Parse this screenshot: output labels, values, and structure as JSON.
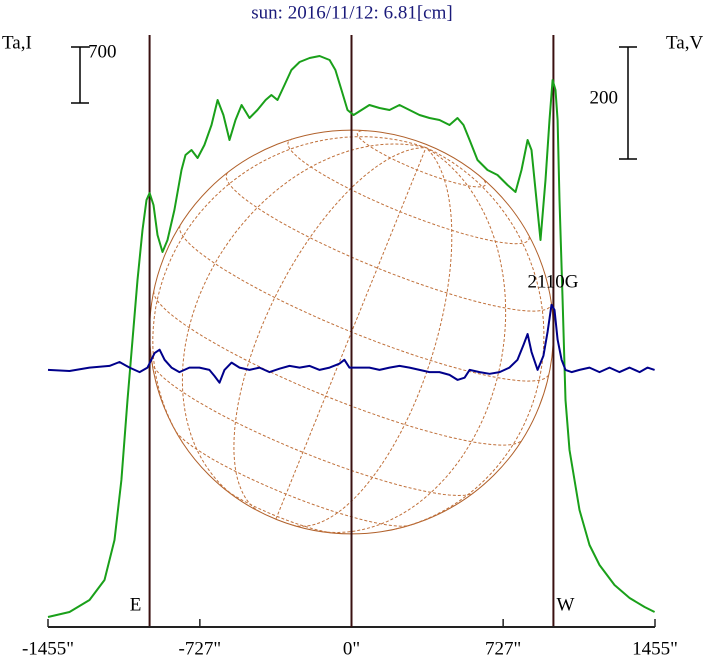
{
  "chart_data": {
    "type": "line",
    "title": "sun: 2016/11/12: 6.81[cm]",
    "xlim": [
      -1455,
      1455
    ],
    "xticks": [
      {
        "value": -1455,
        "label": "-1455\""
      },
      {
        "value": -727,
        "label": "-727\""
      },
      {
        "value": 0,
        "label": "0\""
      },
      {
        "value": 727,
        "label": "727\""
      },
      {
        "value": 1455,
        "label": "1455\""
      }
    ],
    "ylim": [
      0,
      7500
    ],
    "y2lim": [
      -459,
      612
    ],
    "limb_x": [
      -968,
      968
    ],
    "limb_labels": [
      "E",
      "W"
    ],
    "scale_bars": [
      {
        "value": 700,
        "axis": "y"
      },
      {
        "value": 200,
        "axis": "y2"
      }
    ],
    "annotation": "2110G",
    "series": [
      {
        "name": "Ta,I",
        "color": "#1aa01a",
        "x": [
          -1455,
          -1352,
          -1256,
          -1184,
          -1136,
          -1103,
          -1074,
          -1050,
          -1026,
          -1002,
          -983,
          -968,
          -949,
          -930,
          -906,
          -882,
          -849,
          -815,
          -796,
          -767,
          -738,
          -705,
          -671,
          -642,
          -614,
          -585,
          -556,
          -527,
          -489,
          -451,
          -412,
          -384,
          -355,
          -321,
          -288,
          -249,
          -201,
          -153,
          -105,
          -77,
          -48,
          -19,
          10,
          48,
          86,
          134,
          182,
          230,
          278,
          326,
          374,
          422,
          470,
          508,
          537,
          566,
          604,
          652,
          700,
          748,
          786,
          815,
          844,
          863,
          882,
          906,
          930,
          949,
          964,
          978,
          988,
          997,
          1012,
          1026,
          1045,
          1069,
          1093,
          1141,
          1189,
          1261,
          1333,
          1405,
          1453
        ],
        "values": [
          125,
          188,
          338,
          588,
          1088,
          1838,
          2838,
          3588,
          4338,
          4963,
          5338,
          5425,
          5275,
          4900,
          4688,
          4838,
          5213,
          5713,
          5900,
          5963,
          5863,
          6025,
          6275,
          6588,
          6400,
          6088,
          6338,
          6525,
          6363,
          6463,
          6588,
          6650,
          6588,
          6775,
          6963,
          7063,
          7113,
          7138,
          7088,
          6963,
          6713,
          6463,
          6400,
          6463,
          6525,
          6488,
          6463,
          6525,
          6463,
          6400,
          6363,
          6338,
          6275,
          6363,
          6275,
          6088,
          5838,
          5713,
          5650,
          5525,
          5438,
          5713,
          6088,
          5963,
          5463,
          4838,
          5588,
          6338,
          6838,
          6713,
          6338,
          5338,
          4088,
          2838,
          2213,
          1838,
          1463,
          1025,
          775,
          525,
          363,
          250,
          188
        ]
      },
      {
        "name": "Ta,V",
        "color": "#00008b",
        "axis": "y2",
        "x": [
          -1455,
          -1352,
          -1256,
          -1160,
          -1112,
          -1064,
          -1016,
          -978,
          -944,
          -920,
          -896,
          -863,
          -825,
          -777,
          -729,
          -681,
          -657,
          -633,
          -609,
          -575,
          -537,
          -489,
          -441,
          -393,
          -345,
          -297,
          -249,
          -201,
          -153,
          -105,
          -58,
          -34,
          -10,
          38,
          86,
          134,
          182,
          230,
          278,
          326,
          374,
          422,
          470,
          508,
          542,
          566,
          614,
          662,
          710,
          757,
          796,
          825,
          844,
          863,
          892,
          920,
          940,
          959,
          973,
          988,
          1007,
          1026,
          1055,
          1093,
          1141,
          1189,
          1237,
          1285,
          1333,
          1381,
          1419,
          1453
        ],
        "values": [
          0,
          -2,
          4,
          7,
          14,
          4,
          -4,
          4,
          30,
          36,
          18,
          4,
          -4,
          4,
          4,
          0,
          -11,
          -23,
          0,
          13,
          4,
          0,
          4,
          -4,
          2,
          7,
          4,
          7,
          0,
          4,
          11,
          18,
          4,
          4,
          4,
          0,
          4,
          7,
          4,
          0,
          -4,
          -4,
          -9,
          -18,
          -14,
          0,
          -4,
          -7,
          -4,
          4,
          18,
          45,
          64,
          32,
          0,
          25,
          68,
          116,
          107,
          54,
          18,
          0,
          -4,
          0,
          4,
          -4,
          4,
          -4,
          4,
          -4,
          4,
          0
        ]
      }
    ]
  }
}
